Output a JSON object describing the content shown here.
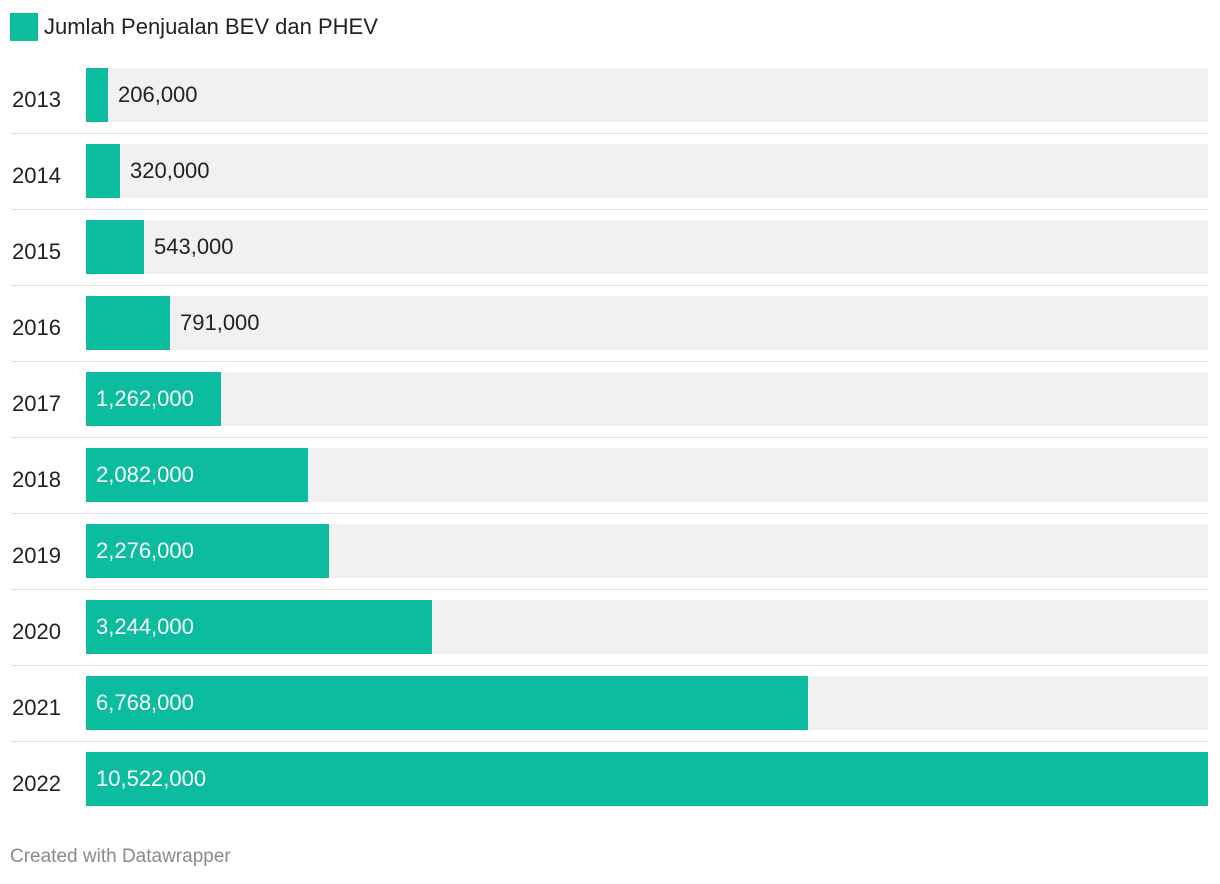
{
  "legend": {
    "label": "Jumlah Penjualan BEV dan PHEV",
    "color": "#0bbc9f"
  },
  "colors": {
    "bar": "#0bbc9f",
    "track": "#f1f1f1",
    "label_inside": "#ffffff",
    "label_outside": "#222222"
  },
  "chart_data": {
    "type": "bar",
    "orientation": "horizontal",
    "categories": [
      "2013",
      "2014",
      "2015",
      "2016",
      "2017",
      "2018",
      "2019",
      "2020",
      "2021",
      "2022"
    ],
    "series": [
      {
        "name": "Jumlah Penjualan BEV dan PHEV",
        "values": [
          206000,
          320000,
          543000,
          791000,
          1262000,
          2082000,
          2276000,
          3244000,
          6768000,
          10522000
        ],
        "labels": [
          "206,000",
          "320,000",
          "543,000",
          "791,000",
          "1,262,000",
          "2,082,000",
          "2,276,000",
          "3,244,000",
          "6,768,000",
          "10,522,000"
        ]
      }
    ],
    "xlim": [
      0,
      10522000
    ],
    "grid": false,
    "legend_position": "top-left"
  },
  "footer": {
    "credit": "Created with Datawrapper"
  }
}
